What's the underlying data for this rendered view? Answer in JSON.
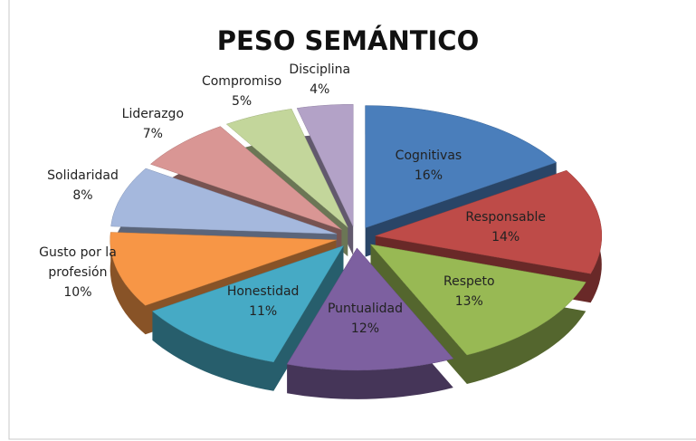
{
  "chart_data": {
    "type": "pie3d",
    "title": "PESO SEMÁNTICO",
    "categories": [
      "Cognitivas",
      "Responsable",
      "Respeto",
      "Puntualidad",
      "Honestidad",
      "Gusto por la profesión",
      "Solidaridad",
      "Liderazgo",
      "Compromiso",
      "Disciplina"
    ],
    "values": [
      16,
      14,
      13,
      12,
      11,
      10,
      8,
      7,
      5,
      4
    ],
    "value_labels": [
      "16%",
      "14%",
      "13%",
      "12%",
      "11%",
      "10%",
      "8%",
      "7%",
      "5%",
      "4%"
    ],
    "colors": [
      "#4a7ebb",
      "#be4b48",
      "#98b954",
      "#7d60a0",
      "#46aac5",
      "#f79646",
      "#a5b8dd",
      "#d99694",
      "#c3d69b",
      "#b3a2c7"
    ]
  }
}
